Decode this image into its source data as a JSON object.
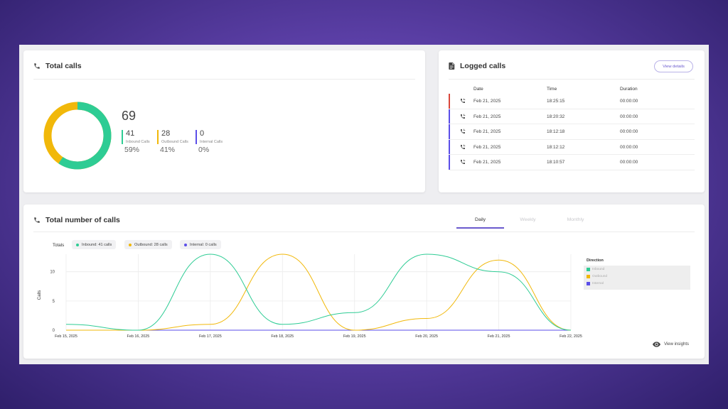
{
  "colors": {
    "inbound": "#2ecc94",
    "outbound": "#f1b80a",
    "internal": "#5b4ee8",
    "accent": "#6a5acd"
  },
  "total_calls": {
    "title": "Total calls",
    "total": "69",
    "stats": [
      {
        "count": "41",
        "label": "Inbound Calls",
        "percent": "59%"
      },
      {
        "count": "28",
        "label": "Outbound Calls",
        "percent": "41%"
      },
      {
        "count": "0",
        "label": "Internal Calls",
        "percent": "0%"
      }
    ]
  },
  "logged_calls": {
    "title": "Logged calls",
    "view_details": "View details",
    "columns": [
      "Date",
      "Time",
      "Duration"
    ],
    "rows": [
      {
        "date": "Feb 21, 2025",
        "time": "18:25:15",
        "duration": "00:00:00",
        "bar": "#d9463b"
      },
      {
        "date": "Feb 21, 2025",
        "time": "18:20:32",
        "duration": "00:00:00",
        "bar": "#5b4ee8"
      },
      {
        "date": "Feb 21, 2025",
        "time": "18:12:18",
        "duration": "00:00:00",
        "bar": "#5b4ee8"
      },
      {
        "date": "Feb 21, 2025",
        "time": "18:12:12",
        "duration": "00:00:00",
        "bar": "#5b4ee8"
      },
      {
        "date": "Feb 21, 2025",
        "time": "18:10:57",
        "duration": "00:00:00",
        "bar": "#5b4ee8"
      }
    ]
  },
  "total_number": {
    "title": "Total number of calls",
    "tabs": [
      "Daily",
      "Weekly",
      "Monthly"
    ],
    "active_tab": "Daily",
    "totals_label": "Totals",
    "pills": [
      "Inbound: 41 calls",
      "Outbound: 28 calls",
      "Internal: 0 calls"
    ],
    "legend_title": "Direction",
    "legend": [
      "Inbound",
      "Outbound",
      "Internal"
    ],
    "view_insights": "View insights"
  },
  "chart_data": {
    "type": "line",
    "x": [
      "Feb 15, 2025",
      "Feb 16, 2025",
      "Feb 17, 2025",
      "Feb 18, 2025",
      "Feb 19, 2025",
      "Feb 20, 2025",
      "Feb 21, 2025",
      "Feb 22, 2025"
    ],
    "ylabel": "Calls",
    "ylim": [
      0,
      13
    ],
    "yticks": [
      0,
      5,
      10
    ],
    "series": [
      {
        "name": "Inbound",
        "values": [
          1,
          0,
          13,
          1,
          3,
          13,
          10,
          0
        ]
      },
      {
        "name": "Outbound",
        "values": [
          0,
          0,
          1,
          13,
          0,
          2,
          12,
          0
        ]
      },
      {
        "name": "Internal",
        "values": [
          0,
          0,
          0,
          0,
          0,
          0,
          0,
          0
        ]
      }
    ],
    "legend_position": "right",
    "grid": true
  }
}
